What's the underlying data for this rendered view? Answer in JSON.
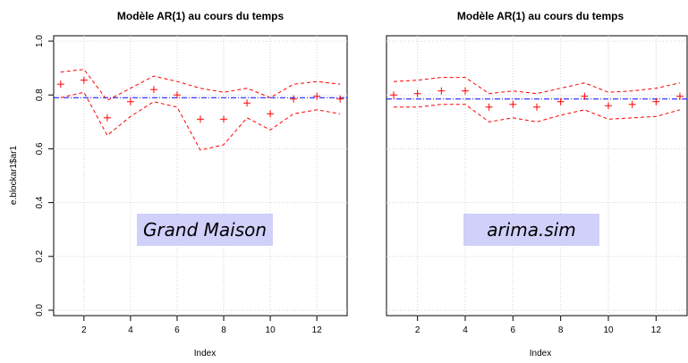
{
  "chart_data": [
    {
      "type": "line",
      "title": "Modèle AR(1) au cours du temps",
      "xlabel": "Index",
      "ylabel": "e.blockar1$ar1",
      "annotation": "Grand Maison",
      "xlim": [
        0.7,
        13.3
      ],
      "ylim": [
        -0.02,
        1.02
      ],
      "x_ticks": [
        2,
        4,
        6,
        8,
        10,
        12
      ],
      "y_ticks": [
        0.0,
        0.2,
        0.4,
        0.6,
        0.8,
        1.0
      ],
      "y_tick_labels": [
        "0.0",
        "0.2",
        "0.4",
        "0.6",
        "0.8",
        "1.0"
      ],
      "grid": true,
      "reference_line": 0.79,
      "x": [
        1,
        2,
        3,
        4,
        5,
        6,
        7,
        8,
        9,
        10,
        11,
        12,
        13
      ],
      "estimate": [
        0.84,
        0.855,
        0.715,
        0.775,
        0.82,
        0.8,
        0.71,
        0.71,
        0.77,
        0.73,
        0.785,
        0.795,
        0.785
      ],
      "upper": [
        0.885,
        0.895,
        0.78,
        0.825,
        0.87,
        0.85,
        0.825,
        0.81,
        0.825,
        0.79,
        0.84,
        0.85,
        0.84
      ],
      "lower": [
        0.79,
        0.81,
        0.65,
        0.72,
        0.775,
        0.755,
        0.595,
        0.615,
        0.715,
        0.67,
        0.73,
        0.745,
        0.73
      ]
    },
    {
      "type": "line",
      "title": "Modèle AR(1) au cours du temps",
      "xlabel": "Index",
      "ylabel": "",
      "annotation": "arima.sim",
      "xlim": [
        0.7,
        13.3
      ],
      "ylim": [
        -0.02,
        1.02
      ],
      "x_ticks": [
        2,
        4,
        6,
        8,
        10,
        12
      ],
      "y_ticks": [],
      "y_tick_labels": [],
      "grid": true,
      "reference_line": 0.785,
      "x": [
        1,
        2,
        3,
        4,
        5,
        6,
        7,
        8,
        9,
        10,
        11,
        12,
        13
      ],
      "estimate": [
        0.8,
        0.805,
        0.815,
        0.815,
        0.755,
        0.765,
        0.755,
        0.775,
        0.795,
        0.76,
        0.765,
        0.775,
        0.795
      ],
      "upper": [
        0.85,
        0.855,
        0.865,
        0.865,
        0.805,
        0.815,
        0.805,
        0.825,
        0.845,
        0.81,
        0.815,
        0.825,
        0.845
      ],
      "lower": [
        0.755,
        0.755,
        0.765,
        0.765,
        0.7,
        0.715,
        0.7,
        0.725,
        0.745,
        0.71,
        0.715,
        0.72,
        0.745
      ]
    }
  ],
  "style": {
    "series_color": "#ff0000",
    "reference_color": "#0000ff",
    "grid_color": "#d3d3d3",
    "label_box_color": "#d0d0fa"
  }
}
